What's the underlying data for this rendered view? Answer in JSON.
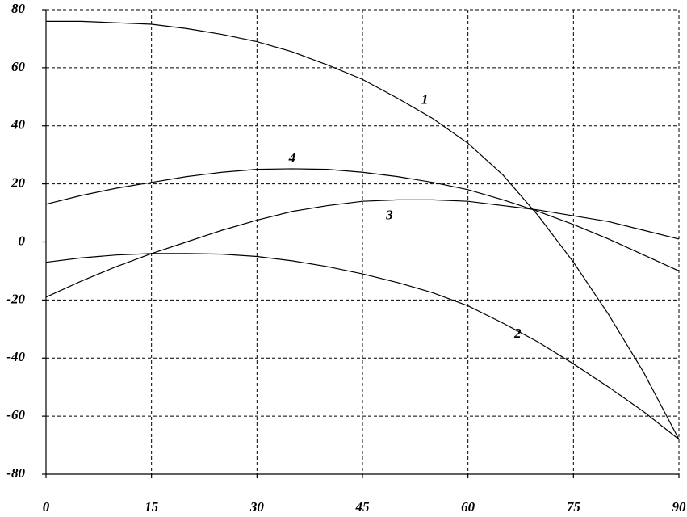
{
  "chart_data": {
    "type": "line",
    "x": [
      0,
      5,
      10,
      15,
      20,
      25,
      30,
      35,
      40,
      45,
      50,
      55,
      60,
      65,
      70,
      75,
      80,
      85,
      90
    ],
    "series": [
      {
        "name": "1",
        "color": "#000000",
        "values": [
          76,
          76,
          75.5,
          75,
          73.5,
          71.5,
          69,
          65.5,
          61,
          56,
          49.5,
          42.5,
          34,
          23,
          9,
          -7,
          -25,
          -45,
          -68
        ]
      },
      {
        "name": "2",
        "color": "#000000",
        "values": [
          -7,
          -5.5,
          -4.5,
          -4,
          -4,
          -4.2,
          -5,
          -6.5,
          -8.5,
          -11,
          -14,
          -17.5,
          -22,
          -28,
          -34.5,
          -42,
          -50,
          -58.5,
          -68
        ]
      },
      {
        "name": "3",
        "color": "#000000",
        "values": [
          -19,
          -13.5,
          -8.5,
          -4,
          0,
          4,
          7.5,
          10.5,
          12.5,
          14,
          14.5,
          14.5,
          14,
          12.5,
          11,
          9,
          7,
          4,
          1
        ]
      },
      {
        "name": "4",
        "color": "#000000",
        "values": [
          13,
          16,
          18.5,
          20.5,
          22.5,
          24,
          25,
          25.2,
          25,
          24,
          22.5,
          20.5,
          18,
          14.5,
          10.5,
          6,
          1,
          -4.5,
          -10
        ]
      }
    ],
    "xlim": [
      0,
      90
    ],
    "xticks": [
      0,
      15,
      30,
      45,
      60,
      75,
      90
    ],
    "ylim": [
      -80,
      80
    ],
    "yticks": [
      -80,
      -60,
      -40,
      -20,
      0,
      20,
      40,
      60,
      80
    ],
    "grid": true
  }
}
